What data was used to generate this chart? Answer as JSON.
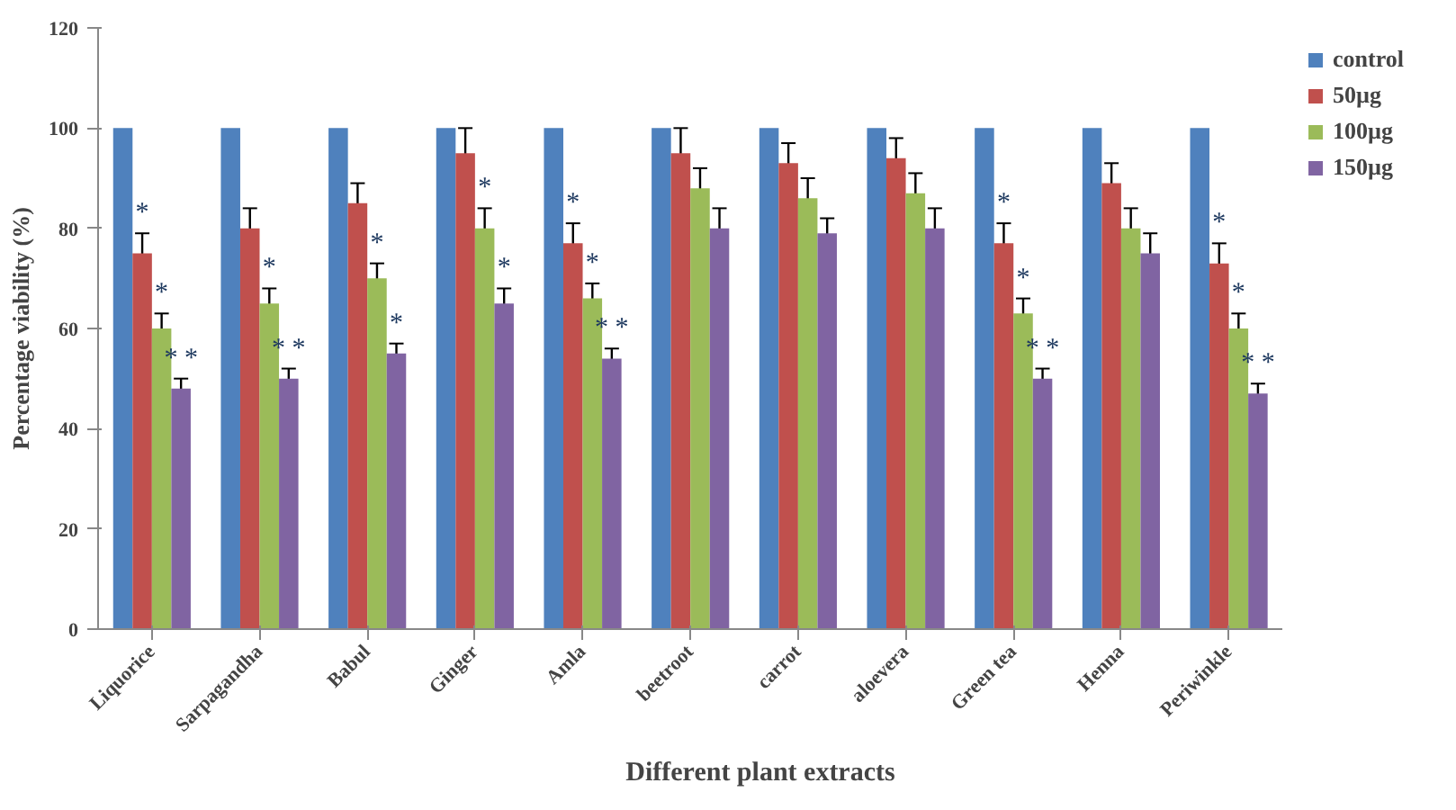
{
  "chart_data": {
    "type": "bar",
    "xlabel": "Different plant extracts",
    "ylabel": "Percentage viability (%)",
    "categories": [
      "Liquorice",
      "Sarpagandha",
      "Babul",
      "Ginger",
      "Amla",
      "beetroot",
      "carrot",
      "aloevera",
      "Green tea",
      "Henna",
      "Periwinkle"
    ],
    "series": [
      {
        "name": "control",
        "color": "#4f81bd",
        "values": [
          100,
          100,
          100,
          100,
          100,
          100,
          100,
          100,
          100,
          100,
          100
        ]
      },
      {
        "name": "50µg",
        "color": "#c0504d",
        "values": [
          75,
          80,
          85,
          95,
          77,
          95,
          93,
          94,
          77,
          89,
          73
        ],
        "errors": [
          4,
          4,
          4,
          5,
          4,
          5,
          4,
          4,
          4,
          4,
          4
        ],
        "value_labels": [
          "*",
          null,
          null,
          null,
          "*",
          null,
          null,
          null,
          "*",
          null,
          "*"
        ]
      },
      {
        "name": "100µg",
        "color": "#9bbb59",
        "values": [
          60,
          65,
          70,
          80,
          66,
          88,
          86,
          87,
          63,
          80,
          60
        ],
        "errors": [
          3,
          3,
          3,
          4,
          3,
          4,
          4,
          4,
          3,
          4,
          3
        ],
        "value_labels": [
          "*",
          "*",
          "*",
          "*",
          "*",
          null,
          null,
          null,
          "*",
          null,
          "*"
        ]
      },
      {
        "name": "150µg",
        "color": "#8064a2",
        "values": [
          48,
          50,
          55,
          65,
          54,
          80,
          79,
          80,
          50,
          75,
          47
        ],
        "errors": [
          2,
          2,
          2,
          3,
          2,
          4,
          3,
          4,
          2,
          4,
          2
        ],
        "value_labels": [
          "* *",
          "* *",
          "*",
          "*",
          "* *",
          null,
          null,
          null,
          "* *",
          null,
          "* *"
        ]
      }
    ],
    "ylim": [
      0,
      120
    ],
    "yticks": [
      0,
      20,
      40,
      60,
      80,
      100,
      120
    ],
    "grid": false,
    "legend": "top right"
  }
}
